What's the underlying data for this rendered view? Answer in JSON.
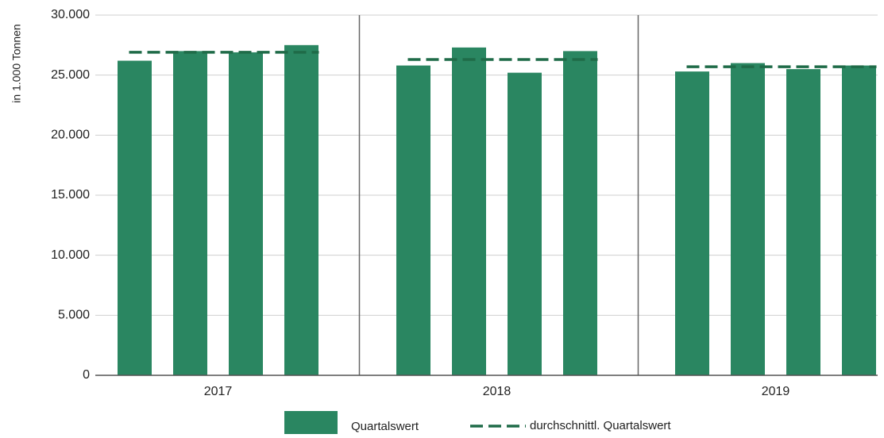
{
  "chart_data": {
    "type": "grouped-bar-average",
    "y_label": "in 1.000 Tonnen",
    "categories": [
      "2017",
      "2018",
      "2019"
    ],
    "series": [
      {
        "name": "Quartalswert",
        "color": "#2a8661",
        "values": [
          [
            26200,
            27000,
            26900,
            27500
          ],
          [
            25800,
            27300,
            25200,
            27000
          ],
          [
            25300,
            26000,
            25500,
            25800
          ]
        ]
      },
      {
        "name": "durchschnittl. Quartalswert",
        "color": "#1f6b48",
        "values": [
          26900,
          26300,
          25700
        ]
      }
    ],
    "ylim": [
      0,
      30000
    ],
    "yticks": [
      0,
      {
        "value": 5000,
        "label": "5.000"
      },
      {
        "value": 10000,
        "label": "10.000"
      },
      {
        "value": 15000,
        "label": "15.000"
      },
      {
        "value": 20000,
        "label": "20.000"
      },
      {
        "value": 25000,
        "label": "25.000"
      },
      {
        "value": 30000,
        "label": "30.000"
      }
    ],
    "grid": true
  }
}
